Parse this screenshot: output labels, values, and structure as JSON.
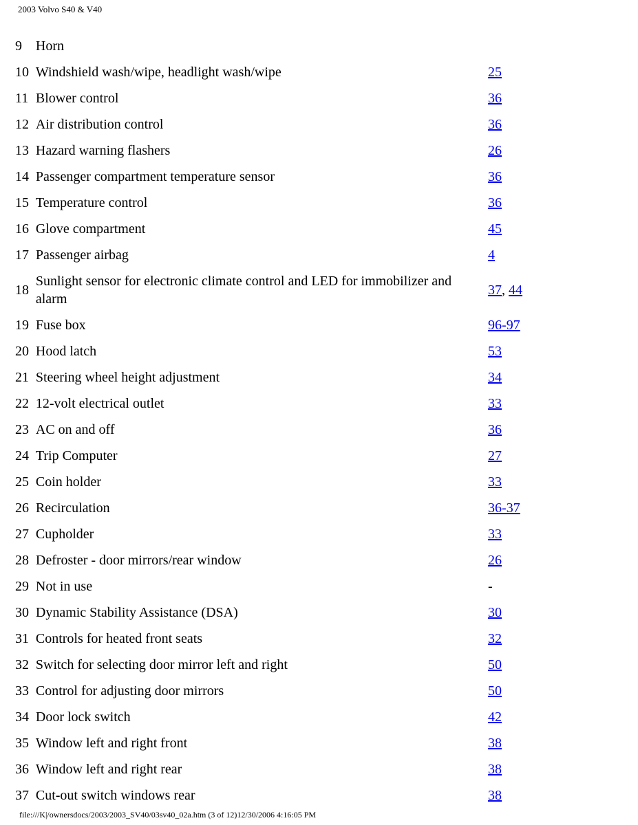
{
  "header": {
    "title": "2003 Volvo S40 & V40"
  },
  "rows": [
    {
      "num": "9",
      "desc": "Horn",
      "pages": []
    },
    {
      "num": "10",
      "desc": "Windshield wash/wipe, headlight wash/wipe",
      "pages": [
        "25"
      ]
    },
    {
      "num": "11",
      "desc": "Blower control",
      "pages": [
        "36"
      ]
    },
    {
      "num": "12",
      "desc": "Air distribution control",
      "pages": [
        "36"
      ]
    },
    {
      "num": "13",
      "desc": "Hazard warning flashers",
      "pages": [
        "26"
      ]
    },
    {
      "num": "14",
      "desc": "Passenger compartment temperature sensor",
      "pages": [
        "36"
      ]
    },
    {
      "num": "15",
      "desc": "Temperature control",
      "pages": [
        "36"
      ]
    },
    {
      "num": "16",
      "desc": "Glove compartment",
      "pages": [
        "45"
      ]
    },
    {
      "num": "17",
      "desc": "Passenger airbag",
      "pages": [
        "4"
      ]
    },
    {
      "num": "18",
      "desc": "Sunlight sensor for electronic climate control and LED for immobilizer and alarm",
      "pages": [
        "37",
        "44"
      ],
      "sep": ", "
    },
    {
      "num": "19",
      "desc": "Fuse box",
      "pages": [
        "96-97"
      ]
    },
    {
      "num": "20",
      "desc": "Hood latch",
      "pages": [
        "53"
      ]
    },
    {
      "num": "21",
      "desc": "Steering wheel height adjustment",
      "pages": [
        "34"
      ]
    },
    {
      "num": "22",
      "desc": "12-volt electrical outlet",
      "pages": [
        "33"
      ]
    },
    {
      "num": "23",
      "desc": "AC on and off",
      "pages": [
        "36"
      ]
    },
    {
      "num": "24",
      "desc": "Trip Computer",
      "pages": [
        "27"
      ]
    },
    {
      "num": "25",
      "desc": "Coin holder",
      "pages": [
        "33"
      ]
    },
    {
      "num": "26",
      "desc": "Recirculation",
      "pages": [
        "36-37"
      ]
    },
    {
      "num": "27",
      "desc": "Cupholder",
      "pages": [
        "33"
      ]
    },
    {
      "num": "28",
      "desc": "Defroster - door mirrors/rear window",
      "pages": [
        "26"
      ]
    },
    {
      "num": "29",
      "desc": "Not in use",
      "pages": [],
      "plain": "-"
    },
    {
      "num": "30",
      "desc": "Dynamic Stability Assistance (DSA)",
      "pages": [
        "30"
      ]
    },
    {
      "num": "31",
      "desc": "Controls for heated front seats",
      "pages": [
        "32"
      ]
    },
    {
      "num": "32",
      "desc": "Switch for selecting door mirror left and right",
      "pages": [
        "50"
      ]
    },
    {
      "num": "33",
      "desc": "Control for adjusting door mirrors",
      "pages": [
        "50"
      ]
    },
    {
      "num": "34",
      "desc": "Door lock switch",
      "pages": [
        "42"
      ]
    },
    {
      "num": "35",
      "desc": "Window left and right front",
      "pages": [
        "38"
      ]
    },
    {
      "num": "36",
      "desc": "Window left and right rear",
      "pages": [
        "38"
      ]
    },
    {
      "num": "37",
      "desc": "Cut-out switch windows rear",
      "pages": [
        "38"
      ]
    }
  ],
  "footer": {
    "text": "file:///K|/ownersdocs/2003/2003_SV40/03sv40_02a.htm (3 of 12)12/30/2006 4:16:05 PM"
  }
}
